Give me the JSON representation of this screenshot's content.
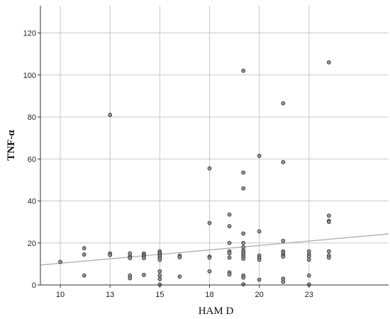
{
  "chart_data": {
    "type": "scatter",
    "title": "",
    "xlabel": "HAM D",
    "ylabel": "TNF-α",
    "xlim": [
      9,
      26.5
    ],
    "ylim": [
      0,
      133
    ],
    "x_ticks": [
      10,
      12.5,
      15,
      17.5,
      20,
      22.5
    ],
    "x_tick_labels": [
      "10",
      "13",
      "15",
      "18",
      "20",
      "23"
    ],
    "y_ticks": [
      0,
      20,
      40,
      60,
      80,
      100,
      120
    ],
    "y_tick_labels": [
      "0",
      "20",
      "40",
      "60",
      "80",
      "100",
      "120"
    ],
    "grid": "vertical and horizontal",
    "fit_line": {
      "type": "linear",
      "x": [
        9,
        26.5
      ],
      "y": [
        9.5,
        24.3
      ]
    },
    "points": [
      {
        "x": 10,
        "y": 11
      },
      {
        "x": 11.2,
        "y": 17.5
      },
      {
        "x": 11.2,
        "y": 14.5
      },
      {
        "x": 11.2,
        "y": 4.5
      },
      {
        "x": 12.5,
        "y": 81
      },
      {
        "x": 12.5,
        "y": 15
      },
      {
        "x": 12.5,
        "y": 14.3
      },
      {
        "x": 13.5,
        "y": 15
      },
      {
        "x": 13.5,
        "y": 13.5
      },
      {
        "x": 13.5,
        "y": 12.8
      },
      {
        "x": 13.5,
        "y": 4.5
      },
      {
        "x": 13.5,
        "y": 3.2
      },
      {
        "x": 14.2,
        "y": 15
      },
      {
        "x": 14.2,
        "y": 14.2
      },
      {
        "x": 14.2,
        "y": 13.5
      },
      {
        "x": 14.2,
        "y": 12.8
      },
      {
        "x": 14.2,
        "y": 4.8
      },
      {
        "x": 15,
        "y": 16
      },
      {
        "x": 15,
        "y": 15.2
      },
      {
        "x": 15,
        "y": 14.5
      },
      {
        "x": 15,
        "y": 13.8
      },
      {
        "x": 15,
        "y": 13
      },
      {
        "x": 15,
        "y": 12
      },
      {
        "x": 15,
        "y": 6.5
      },
      {
        "x": 15,
        "y": 4.5
      },
      {
        "x": 15,
        "y": 2.8
      },
      {
        "x": 15,
        "y": 0.2
      },
      {
        "x": 16,
        "y": 14
      },
      {
        "x": 16,
        "y": 13.2
      },
      {
        "x": 16,
        "y": 4
      },
      {
        "x": 17.5,
        "y": 55.5
      },
      {
        "x": 17.5,
        "y": 29.5
      },
      {
        "x": 17.5,
        "y": 13.5
      },
      {
        "x": 17.5,
        "y": 13
      },
      {
        "x": 17.5,
        "y": 6.5
      },
      {
        "x": 18.5,
        "y": 33.5
      },
      {
        "x": 18.5,
        "y": 28
      },
      {
        "x": 18.5,
        "y": 20
      },
      {
        "x": 18.5,
        "y": 16
      },
      {
        "x": 18.5,
        "y": 15
      },
      {
        "x": 18.5,
        "y": 13
      },
      {
        "x": 18.5,
        "y": 6
      },
      {
        "x": 18.5,
        "y": 5
      },
      {
        "x": 19.2,
        "y": 102
      },
      {
        "x": 19.2,
        "y": 53.5
      },
      {
        "x": 19.2,
        "y": 46
      },
      {
        "x": 19.2,
        "y": 24.5
      },
      {
        "x": 19.2,
        "y": 20
      },
      {
        "x": 19.2,
        "y": 18
      },
      {
        "x": 19.2,
        "y": 16.5
      },
      {
        "x": 19.2,
        "y": 15.5
      },
      {
        "x": 19.2,
        "y": 14.5
      },
      {
        "x": 19.2,
        "y": 13.5
      },
      {
        "x": 19.2,
        "y": 12.5
      },
      {
        "x": 19.2,
        "y": 4.5
      },
      {
        "x": 19.2,
        "y": 3.5
      },
      {
        "x": 19.2,
        "y": 0.3
      },
      {
        "x": 20,
        "y": 61.5
      },
      {
        "x": 20,
        "y": 25.5
      },
      {
        "x": 20,
        "y": 14
      },
      {
        "x": 20,
        "y": 13
      },
      {
        "x": 20,
        "y": 12
      },
      {
        "x": 20,
        "y": 2.5
      },
      {
        "x": 21.2,
        "y": 86.5
      },
      {
        "x": 21.2,
        "y": 58.5
      },
      {
        "x": 21.2,
        "y": 21
      },
      {
        "x": 21.2,
        "y": 16
      },
      {
        "x": 21.2,
        "y": 15
      },
      {
        "x": 21.2,
        "y": 14
      },
      {
        "x": 21.2,
        "y": 13.5
      },
      {
        "x": 21.2,
        "y": 3
      },
      {
        "x": 21.2,
        "y": 1.5
      },
      {
        "x": 22.5,
        "y": 16
      },
      {
        "x": 22.5,
        "y": 14.5
      },
      {
        "x": 22.5,
        "y": 13.5
      },
      {
        "x": 22.5,
        "y": 12
      },
      {
        "x": 22.5,
        "y": 4.5
      },
      {
        "x": 22.5,
        "y": 0.2
      },
      {
        "x": 23.5,
        "y": 106
      },
      {
        "x": 23.5,
        "y": 33
      },
      {
        "x": 23.5,
        "y": 30.5
      },
      {
        "x": 23.5,
        "y": 30
      },
      {
        "x": 23.5,
        "y": 16
      },
      {
        "x": 23.5,
        "y": 14
      },
      {
        "x": 23.5,
        "y": 13
      }
    ],
    "colors": {
      "points_stroke": "#3a3a3a",
      "points_fill": "#9a9a9a",
      "grid": "#c8c8c8",
      "fit_line": "#a8a8a8",
      "axis": "#333333"
    }
  }
}
